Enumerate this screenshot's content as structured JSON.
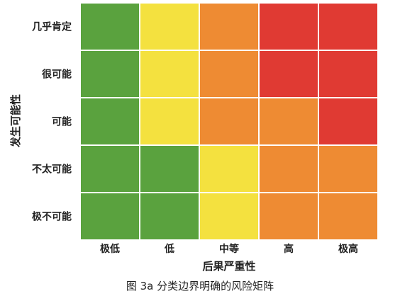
{
  "chart_data": {
    "type": "heatmap",
    "title": "",
    "xlabel": "后果严重性",
    "ylabel": "发生可能性",
    "x_categories": [
      "极低",
      "低",
      "中等",
      "高",
      "极高"
    ],
    "y_categories": [
      "几乎肯定",
      "很可能",
      "可能",
      "不太可能",
      "极不可能"
    ],
    "levels": [
      "green",
      "yellow",
      "orange",
      "red"
    ],
    "colors": {
      "green": "#5aa23e",
      "yellow": "#f4e13f",
      "orange": "#ee8b33",
      "red": "#e03a33"
    },
    "matrix": [
      [
        "green",
        "yellow",
        "orange",
        "red",
        "red"
      ],
      [
        "green",
        "yellow",
        "orange",
        "red",
        "red"
      ],
      [
        "green",
        "yellow",
        "orange",
        "orange",
        "red"
      ],
      [
        "green",
        "green",
        "yellow",
        "orange",
        "orange"
      ],
      [
        "green",
        "green",
        "yellow",
        "orange",
        "orange"
      ]
    ]
  },
  "caption": "图 3a    分类边界明确的风险矩阵"
}
